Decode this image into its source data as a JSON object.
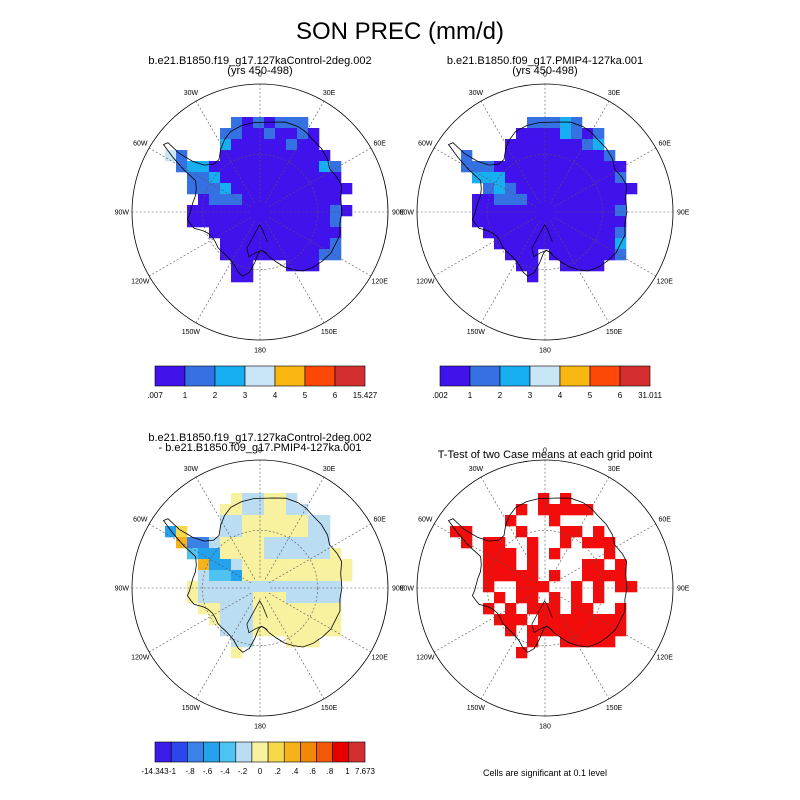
{
  "title": "SON PREC (mm/d)",
  "colors": {
    "abs": [
      "#4013EC",
      "#3671E3",
      "#17AEF2",
      "#C8E6F5",
      "#FBB711",
      "#FD4808",
      "#D42F2F"
    ],
    "diff": [
      "#3B1BE8",
      "#2A46EC",
      "#3A81E8",
      "#24A2EE",
      "#4EC2F0",
      "#BBDDF2",
      "#F8F1A0",
      "#F6D84A",
      "#F6B21A",
      "#F18808",
      "#F25806",
      "#E60000",
      "#D42F2F"
    ],
    "sig": "#F20C0C",
    "coast": "#000000",
    "grid": "#555555"
  },
  "chart_data": [
    {
      "type": "heatmap",
      "title": "b.e21.B1850.f19_g17.127kaControl-2deg.002",
      "subtitle": "(yrs 450-498)",
      "projection": "south-polar-stereographic",
      "longitude_labels": [
        "0",
        "30E",
        "60E",
        "90E",
        "120E",
        "150E",
        "180",
        "150W",
        "120W",
        "90W",
        "60W",
        "30W"
      ],
      "colorbar": {
        "labels": [
          ".007",
          "1",
          "2",
          "3",
          "4",
          "5",
          "6",
          "15.427"
        ],
        "levels": [
          0.007,
          1,
          2,
          3,
          4,
          5,
          6,
          15.427
        ]
      }
    },
    {
      "type": "heatmap",
      "title": "b.e21.B1850.f09_g17.PMIP4-127ka.001",
      "subtitle": "(yrs 450-498)",
      "projection": "south-polar-stereographic",
      "longitude_labels": [
        "0",
        "30E",
        "60E",
        "90E",
        "120E",
        "150E",
        "180",
        "150W",
        "120W",
        "90W",
        "60W",
        "30W"
      ],
      "colorbar": {
        "labels": [
          ".002",
          "1",
          "2",
          "3",
          "4",
          "5",
          "6",
          "31.011"
        ],
        "levels": [
          0.002,
          1,
          2,
          3,
          4,
          5,
          6,
          31.011
        ]
      }
    },
    {
      "type": "heatmap",
      "title": "b.e21.B1850.f19_g17.127kaControl-2deg.002",
      "subtitle": "- b.e21.B1850.f09_g17.PMIP4-127ka.001",
      "projection": "south-polar-stereographic",
      "longitude_labels": [
        "0",
        "30E",
        "60E",
        "90E",
        "120E",
        "150E",
        "180",
        "150W",
        "120W",
        "90W",
        "60W",
        "30W"
      ],
      "colorbar": {
        "labels": [
          "-14.343",
          "-1",
          "-.8",
          "-.6",
          "-.4",
          "-.2",
          "0",
          ".2",
          ".4",
          ".6",
          ".8",
          "1",
          "7.673"
        ],
        "levels": [
          -14.343,
          -1,
          -0.8,
          -0.6,
          -0.4,
          -0.2,
          0,
          0.2,
          0.4,
          0.6,
          0.8,
          1,
          7.673
        ]
      }
    },
    {
      "type": "heatmap",
      "title": "T-Test of two Case means at each grid point",
      "projection": "south-polar-stereographic",
      "longitude_labels": [
        "0",
        "30E",
        "60E",
        "90E",
        "120E",
        "150E",
        "180",
        "150W",
        "120W",
        "90W",
        "60W",
        "30W"
      ],
      "footnote": "Cells are significant at 0.1 level"
    }
  ]
}
